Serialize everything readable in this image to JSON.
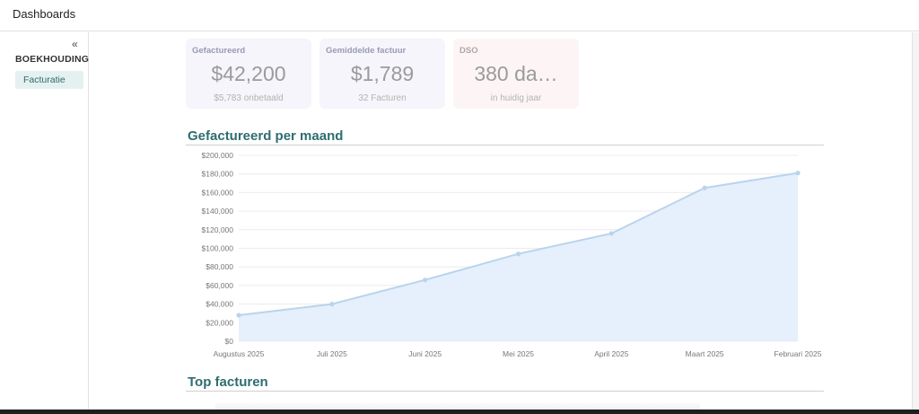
{
  "header": {
    "title": "Dashboards"
  },
  "sidebar": {
    "collapse_label": "«",
    "section": "BOEKHOUDING",
    "items": [
      {
        "label": "Facturatie",
        "active": true
      }
    ]
  },
  "kpis": [
    {
      "label": "Gefactureerd",
      "value": "$42,200",
      "sub": "$5,783 onbetaald"
    },
    {
      "label": "Gemiddelde factuur",
      "value": "$1,789",
      "sub": "32 Facturen"
    },
    {
      "label": "DSO",
      "value": "380 da…",
      "sub": "in huidig jaar"
    }
  ],
  "sections": {
    "monthly_title": "Gefactureerd per maand",
    "top_title": "Top facturen"
  },
  "colors": {
    "accent": "#2f6d70",
    "line": "#b9d4ec",
    "area": "#e6effc"
  },
  "chart_data": {
    "type": "area",
    "categories": [
      "Augustus 2025",
      "Juli 2025",
      "Juni 2025",
      "Mei 2025",
      "April 2025",
      "Maart 2025",
      "Februari 2025"
    ],
    "series": [
      {
        "values": [
          28000,
          40000,
          66000,
          94000,
          116000,
          165000,
          181000
        ]
      }
    ],
    "ylim": [
      0,
      200000
    ],
    "yticks": [
      "$0",
      "$20,000",
      "$40,000",
      "$60,000",
      "$80,000",
      "$100,000",
      "$120,000",
      "$140,000",
      "$160,000",
      "$180,000",
      "$200,000"
    ],
    "grid": true,
    "legend": "none"
  }
}
